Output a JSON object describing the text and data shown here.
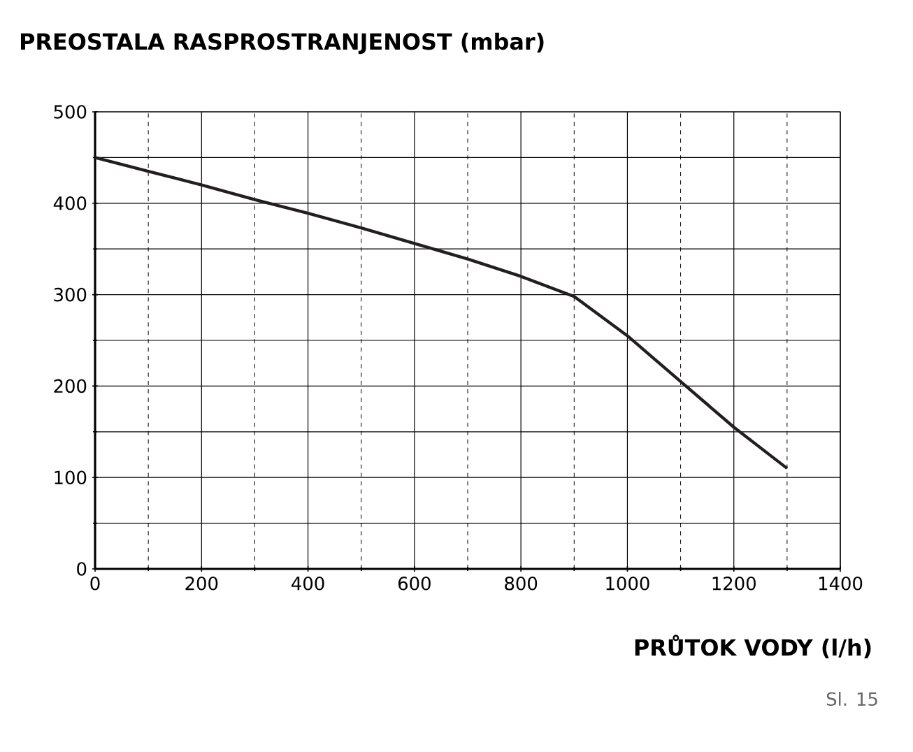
{
  "chart_data": {
    "type": "line",
    "title": "PREOSTALA RASPROSTRANJENOST (mbar)",
    "xlabel": "PRŮTOK VODY (l/h)",
    "annotations": [
      "Sl. 15"
    ],
    "x": [
      0,
      100,
      200,
      300,
      400,
      500,
      600,
      700,
      800,
      900,
      1000,
      1100,
      1200,
      1300
    ],
    "series": [
      {
        "color": "#231f20",
        "values": [
          450,
          435,
          420,
          404,
          389,
          373,
          356,
          339,
          320,
          298,
          255,
          205,
          155,
          110
        ]
      }
    ],
    "xlim": [
      0,
      1400
    ],
    "ylim": [
      0,
      500
    ],
    "xticks": [
      0,
      {
        "value": 100,
        "label": null
      },
      200,
      {
        "value": 300,
        "label": null
      },
      400,
      {
        "value": 500,
        "label": null
      },
      600,
      {
        "value": 700,
        "label": null
      },
      800,
      {
        "value": 900,
        "label": null
      },
      1000,
      {
        "value": 1100,
        "label": null
      },
      1200,
      {
        "value": 1300,
        "label": null
      },
      1400
    ],
    "yticks": [
      0,
      {
        "value": 50,
        "label": null
      },
      100,
      {
        "value": 150,
        "label": null
      },
      200,
      {
        "value": 250,
        "label": null
      },
      300,
      {
        "value": 350,
        "label": null
      },
      400,
      {
        "value": 450,
        "label": null
      },
      500
    ],
    "grid": true,
    "marker": "none",
    "line_style": "solid"
  }
}
